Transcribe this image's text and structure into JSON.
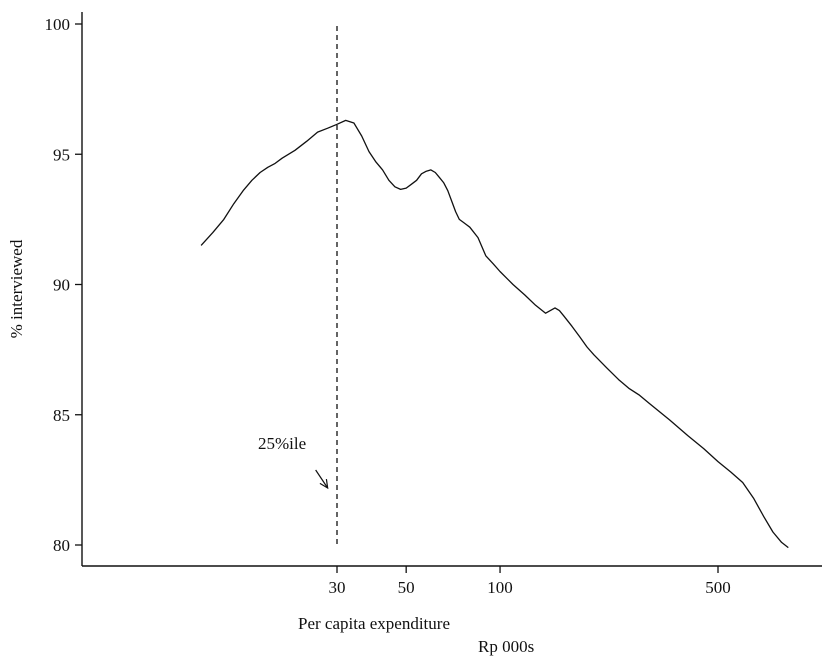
{
  "chart_data": {
    "type": "line",
    "title": "",
    "xlabel": "Per capita expenditure",
    "xlabel_unit": "Rp 000s",
    "ylabel": "% interviewed",
    "x_scale": "log",
    "xlim": [
      10,
      900
    ],
    "ylim": [
      79.5,
      100.4
    ],
    "x_ticks": [
      30,
      50,
      100,
      500
    ],
    "y_ticks": [
      80,
      85,
      90,
      95,
      100
    ],
    "grid": false,
    "legend": "none",
    "line_color": "#111111",
    "reference_line": {
      "x": 30,
      "style": "dashed"
    },
    "annotation": {
      "text": "25%ile",
      "arrow_to_x": 28
    },
    "series": [
      {
        "x": [
          11,
          12,
          13,
          14,
          15,
          16,
          17,
          18,
          19,
          20,
          22,
          24,
          26,
          28,
          30,
          32,
          34,
          36,
          38,
          40,
          42,
          44,
          46,
          48,
          50,
          52,
          54,
          56,
          58,
          60,
          62,
          64,
          66,
          68,
          70,
          72,
          74,
          76,
          78,
          80,
          85,
          90,
          95,
          100,
          110,
          120,
          130,
          140,
          150,
          155,
          160,
          170,
          180,
          190,
          200,
          220,
          240,
          260,
          280,
          300,
          350,
          400,
          450,
          500,
          550,
          600,
          650,
          700,
          750,
          800,
          840
        ],
        "y": [
          91.5,
          92.0,
          92.5,
          93.1,
          93.6,
          94.0,
          94.3,
          94.5,
          94.65,
          94.85,
          95.15,
          95.5,
          95.85,
          96.0,
          96.15,
          96.3,
          96.2,
          95.7,
          95.1,
          94.7,
          94.4,
          94.0,
          93.75,
          93.65,
          93.7,
          93.85,
          94.0,
          94.25,
          94.35,
          94.4,
          94.3,
          94.1,
          93.9,
          93.6,
          93.2,
          92.8,
          92.5,
          92.4,
          92.3,
          92.2,
          91.8,
          91.1,
          90.8,
          90.5,
          90.0,
          89.6,
          89.2,
          88.9,
          89.1,
          89.0,
          88.8,
          88.4,
          88.0,
          87.6,
          87.3,
          86.8,
          86.35,
          86.0,
          85.75,
          85.45,
          84.8,
          84.2,
          83.7,
          83.2,
          82.8,
          82.4,
          81.8,
          81.1,
          80.5,
          80.1,
          79.9
        ]
      }
    ]
  }
}
